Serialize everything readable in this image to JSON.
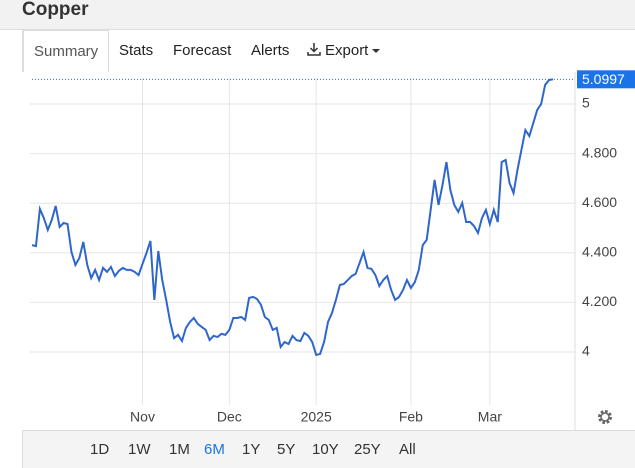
{
  "header": {
    "title": "Copper"
  },
  "tabs": [
    "Summary",
    "Stats",
    "Forecast",
    "Alerts"
  ],
  "export": "Export",
  "ranges": [
    "1D",
    "1W",
    "1M",
    "6M",
    "1Y",
    "5Y",
    "10Y",
    "25Y",
    "All"
  ],
  "active_range": "6M",
  "chart_data": {
    "type": "line",
    "series": [
      {
        "color": "#2f66cc",
        "values": [
          4.431,
          4.427,
          4.577,
          4.54,
          4.492,
          4.532,
          4.589,
          4.504,
          4.52,
          4.516,
          4.403,
          4.351,
          4.379,
          4.444,
          4.351,
          4.298,
          4.331,
          4.29,
          4.339,
          4.323,
          4.343,
          4.306,
          4.327,
          4.339,
          4.331,
          4.331,
          4.323,
          4.31,
          4.355,
          4.399,
          4.448,
          4.21,
          4.407,
          4.29,
          4.21,
          4.121,
          4.056,
          4.069,
          4.044,
          4.097,
          4.121,
          4.137,
          4.113,
          4.101,
          4.089,
          4.048,
          4.065,
          4.06,
          4.073,
          4.069,
          4.089,
          4.137,
          4.137,
          4.141,
          4.129,
          4.218,
          4.222,
          4.214,
          4.19,
          4.141,
          4.129,
          4.089,
          4.097,
          4.02,
          4.04,
          4.032,
          4.065,
          4.048,
          4.044,
          4.077,
          4.065,
          4.04,
          3.988,
          3.992,
          4.04,
          4.121,
          4.157,
          4.21,
          4.27,
          4.274,
          4.29,
          4.306,
          4.315,
          4.359,
          4.403,
          4.339,
          4.335,
          4.31,
          4.266,
          4.29,
          4.306,
          4.25,
          4.21,
          4.222,
          4.25,
          4.29,
          4.258,
          4.282,
          4.331,
          4.431,
          4.452,
          4.573,
          4.694,
          4.593,
          4.673,
          4.766,
          4.653,
          4.593,
          4.565,
          4.601,
          4.524,
          4.524,
          4.508,
          4.48,
          4.54,
          4.573,
          4.516,
          4.573,
          4.524,
          4.766,
          4.774,
          4.681,
          4.641,
          4.734,
          4.815,
          4.895,
          4.871,
          4.923,
          4.976,
          5.0,
          5.077,
          5.097,
          5.0997
        ]
      }
    ],
    "xlim": [
      0,
      132
    ],
    "xticks": [
      {
        "value": 28,
        "label": "Nov"
      },
      {
        "value": 50,
        "label": "Dec"
      },
      {
        "value": 72,
        "label": "2025"
      },
      {
        "value": 96,
        "label": "Feb"
      },
      {
        "value": 116,
        "label": "Mar"
      }
    ],
    "ylim": [
      3.786,
      5.105
    ],
    "yticks": [
      4,
      {
        "value": 4.2,
        "label": "4.200"
      },
      {
        "value": 4.4,
        "label": "4.400"
      },
      {
        "value": 4.6,
        "label": "4.600"
      },
      {
        "value": 4.8,
        "label": "4.800"
      },
      5
    ],
    "grid": true,
    "last_value_color": "#1a73e8"
  }
}
